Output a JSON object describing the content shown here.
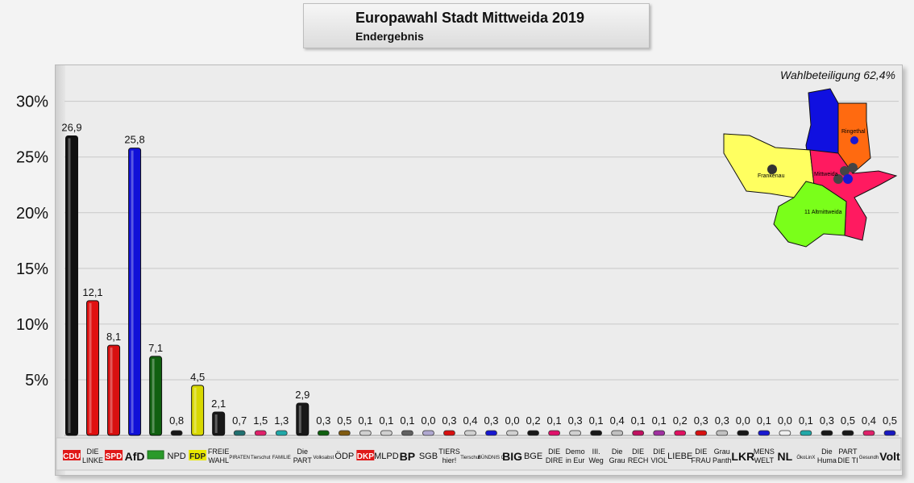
{
  "header": {
    "title": "Europawahl Stadt Mittweida 2019",
    "subtitle": "Endergebnis",
    "turnout": "Wahlbeteiligung 62,4%"
  },
  "map": {
    "labels": [
      "Ringethal",
      "Mittweida",
      "Frankenau",
      "11 Altmittweida"
    ],
    "colors": [
      "#1010e0",
      "#ff6a10",
      "#ffff60",
      "#ff1a60",
      "#7aff1a"
    ]
  },
  "chart_data": {
    "type": "bar",
    "title": "Europawahl Stadt Mittweida 2019",
    "subtitle": "Endergebnis",
    "ylim": [
      0,
      32
    ],
    "yticks": [
      "5%",
      "10%",
      "15%",
      "20%",
      "25%",
      "30%"
    ],
    "ytick_values": [
      5,
      10,
      15,
      20,
      25,
      30
    ],
    "grid": true,
    "categories": [
      "CDU",
      "DIE LINKE",
      "SPD",
      "AfD",
      "GRÜNE",
      "NPD",
      "FDP",
      "FREIE WAHL",
      "PIRATEN",
      "Tierschutz",
      "FAMILIE",
      "Die PART",
      "Volksabst",
      "ÖDP",
      "DKP",
      "MLPD",
      "BP",
      "SGB",
      "TIERS hier!",
      "Tierschutz",
      "BÜNDNIS C",
      "BIG",
      "BGE",
      "DIE DIRE",
      "Demo in Eur",
      "III. Weg",
      "Die Grau",
      "DIE RECH",
      "DIE VIOL",
      "LIEBE",
      "DIE FRAU",
      "Grau Panth",
      "LKR",
      "MENS WELT",
      "NL",
      "Ökolinx",
      "Die Huma",
      "PART DIE TI",
      "Gesundh",
      "Volt"
    ],
    "labels": [
      "CDU",
      [
        "DIE",
        "LINKE"
      ],
      "SPD",
      "AfD",
      "",
      "NPD",
      "FDP",
      [
        "FREIE",
        "WAHL"
      ],
      "PIRATEN",
      "Tierschut",
      "FAMILIE",
      [
        "Die",
        "PART"
      ],
      "Volksabst",
      "ÖDP",
      "DKP",
      "MLPD",
      "BP",
      "SGB",
      [
        "TIERS",
        "hier!"
      ],
      "Tierschut",
      "BÜNDNIS C",
      "BIG",
      "BGE",
      [
        "DIE",
        "DIRE"
      ],
      [
        "Demo",
        "in Eur"
      ],
      [
        "III.",
        "Weg"
      ],
      [
        "Die",
        "Grau"
      ],
      [
        "DIE",
        "RECH"
      ],
      [
        "DIE",
        "VIOL"
      ],
      "LIEBE",
      [
        "DIE",
        "FRAU"
      ],
      [
        "Grau",
        "Panth"
      ],
      "LKR",
      [
        "MENS",
        "WELT"
      ],
      "NL",
      "ÖkoLinX",
      [
        "Die",
        "Huma"
      ],
      [
        "PART",
        "DIE TI"
      ],
      "Gesundh",
      "Volt"
    ],
    "values": [
      26.9,
      12.1,
      8.1,
      25.8,
      7.1,
      0.8,
      4.5,
      2.1,
      0.7,
      1.5,
      1.3,
      2.9,
      0.3,
      0.5,
      0.1,
      0.1,
      0.1,
      0.0,
      0.3,
      0.4,
      0.3,
      0.0,
      0.2,
      0.1,
      0.3,
      0.1,
      0.4,
      0.1,
      0.1,
      0.2,
      0.3,
      0.3,
      0.0,
      0.1,
      0.0,
      0.1,
      0.3,
      0.5,
      0.4,
      0.5
    ],
    "value_labels": [
      "26,9",
      "12,1",
      "8,1",
      "25,8",
      "7,1",
      "0,8",
      "4,5",
      "2,1",
      "0,7",
      "1,5",
      "1,3",
      "2,9",
      "0,3",
      "0,5",
      "0,1",
      "0,1",
      "0,1",
      "0,0",
      "0,3",
      "0,4",
      "0,3",
      "0,0",
      "0,2",
      "0,1",
      "0,3",
      "0,1",
      "0,4",
      "0,1",
      "0,1",
      "0,2",
      "0,3",
      "0,3",
      "0,0",
      "0,1",
      "0,0",
      "0,1",
      "0,3",
      "0,5",
      "0,4",
      "0,5"
    ],
    "colors": [
      "#101010",
      "#e01010",
      "#d81010",
      "#1010d8",
      "#106010",
      "#181818",
      "#d8d800",
      "#181818",
      "#207070",
      "#e0206a",
      "#20a8a8",
      "#181818",
      "#106010",
      "#805a10",
      "#d0d0d0",
      "#d0d0d0",
      "#606060",
      "#b0a8d0",
      "#d81010",
      "#d0d0d0",
      "#1818d0",
      "#d0d0d0",
      "#181818",
      "#e0106a",
      "#d0d0d0",
      "#181818",
      "#c0c0c0",
      "#c01060",
      "#a030a0",
      "#e01060",
      "#d81010",
      "#c0c0c0",
      "#181818",
      "#1818d0",
      "#f0f0f0",
      "#20a8a8",
      "#181818",
      "#181818",
      "#e0206a",
      "#1818c0"
    ]
  }
}
